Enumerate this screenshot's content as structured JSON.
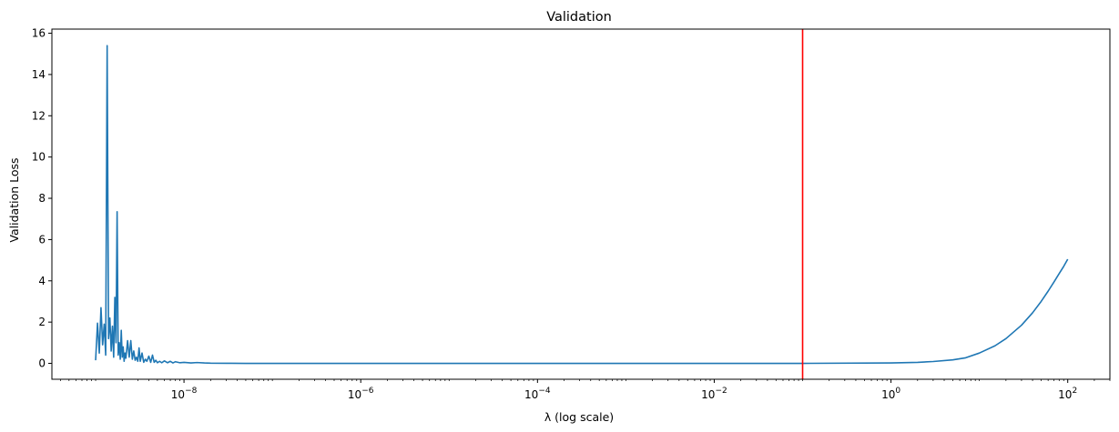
{
  "chart_data": {
    "type": "line",
    "title": "Validation",
    "xlabel": "λ (log scale)",
    "ylabel": "Validation Loss",
    "xscale": "log",
    "xlim": [
      3.2e-10,
      300.0
    ],
    "ylim": [
      -0.77,
      16.2
    ],
    "grid": false,
    "legend": "none",
    "x_ticks": [
      {
        "value": 1e-08,
        "base": "10",
        "exp": "−8"
      },
      {
        "value": 1e-06,
        "base": "10",
        "exp": "−6"
      },
      {
        "value": 0.0001,
        "base": "10",
        "exp": "−4"
      },
      {
        "value": 0.01,
        "base": "10",
        "exp": "−2"
      },
      {
        "value": 1,
        "base": "10",
        "exp": "0"
      },
      {
        "value": 100,
        "base": "10",
        "exp": "2"
      }
    ],
    "y_ticks": [
      "0",
      "2",
      "4",
      "6",
      "8",
      "10",
      "12",
      "14",
      "16"
    ],
    "series": [
      {
        "color": "#1f77b4",
        "x": [
          1e-09,
          1.05e-09,
          1.1e-09,
          1.15e-09,
          1.2e-09,
          1.25e-09,
          1.3e-09,
          1.35e-09,
          1.4e-09,
          1.45e-09,
          1.5e-09,
          1.55e-09,
          1.6e-09,
          1.65e-09,
          1.7e-09,
          1.75e-09,
          1.8e-09,
          1.85e-09,
          1.9e-09,
          1.95e-09,
          2e-09,
          2.05e-09,
          2.1e-09,
          2.15e-09,
          2.2e-09,
          2.3e-09,
          2.4e-09,
          2.5e-09,
          2.6e-09,
          2.7e-09,
          2.8e-09,
          2.9e-09,
          3e-09,
          3.1e-09,
          3.2e-09,
          3.35e-09,
          3.5e-09,
          3.65e-09,
          3.8e-09,
          4e-09,
          4.2e-09,
          4.4e-09,
          4.6e-09,
          4.8e-09,
          5e-09,
          5.3e-09,
          5.6e-09,
          6e-09,
          6.5e-09,
          7e-09,
          7.5e-09,
          8e-09,
          9e-09,
          1e-08,
          1.2e-08,
          1.4e-08,
          1.7e-08,
          2e-08,
          3e-08,
          5e-08,
          1e-07,
          1e-06,
          1e-05,
          0.0001,
          0.001,
          0.01,
          0.1,
          1.0,
          2.0,
          3.0,
          5.0,
          7.0,
          10,
          15,
          20,
          30,
          40,
          50,
          60,
          70,
          80,
          90,
          100
        ],
        "y": [
          0.15,
          1.95,
          0.5,
          2.7,
          0.9,
          1.9,
          0.4,
          15.4,
          1.2,
          2.2,
          0.6,
          1.8,
          0.3,
          3.2,
          1.0,
          7.35,
          0.4,
          1.0,
          0.2,
          1.6,
          0.3,
          0.8,
          0.1,
          0.5,
          0.25,
          1.1,
          0.3,
          1.1,
          0.2,
          0.6,
          0.15,
          0.3,
          0.1,
          0.75,
          0.1,
          0.5,
          0.05,
          0.2,
          0.1,
          0.35,
          0.05,
          0.4,
          0.05,
          0.15,
          0.03,
          0.1,
          0.03,
          0.12,
          0.03,
          0.1,
          0.02,
          0.08,
          0.03,
          0.05,
          0.02,
          0.04,
          0.02,
          0.01,
          0.005,
          0.0,
          0.0,
          0.0,
          0.0,
          0.0,
          0.0,
          0.0,
          0.0,
          0.02,
          0.05,
          0.09,
          0.17,
          0.27,
          0.5,
          0.85,
          1.2,
          1.85,
          2.45,
          3.0,
          3.5,
          3.95,
          4.35,
          4.7,
          5.05
        ]
      }
    ],
    "vline": {
      "x": 0.1,
      "color": "#ff0000"
    }
  }
}
